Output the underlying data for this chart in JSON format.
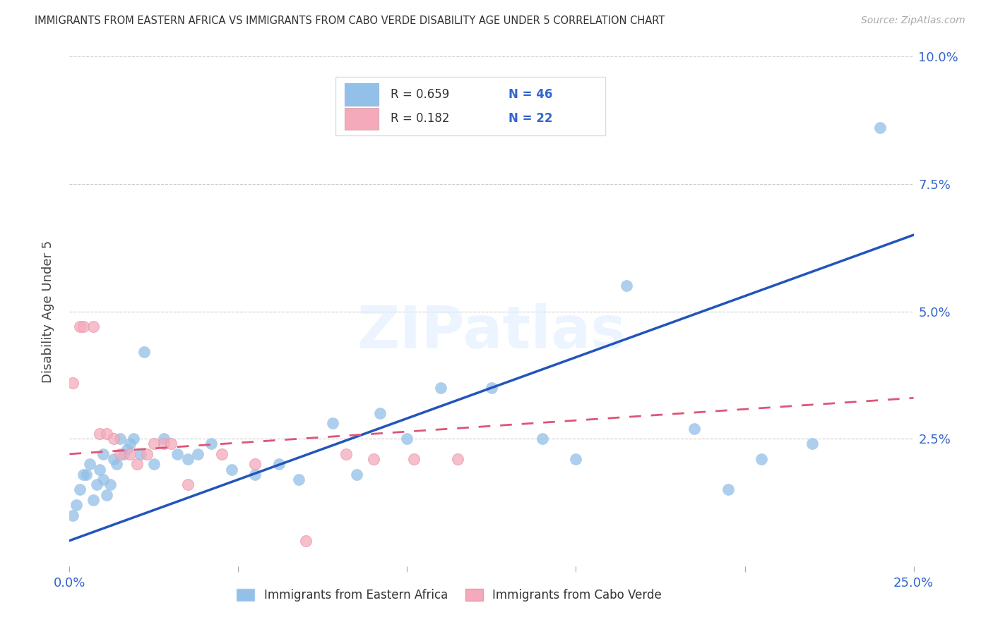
{
  "title": "IMMIGRANTS FROM EASTERN AFRICA VS IMMIGRANTS FROM CABO VERDE DISABILITY AGE UNDER 5 CORRELATION CHART",
  "source": "Source: ZipAtlas.com",
  "ylabel": "Disability Age Under 5",
  "xlim": [
    0.0,
    0.25
  ],
  "ylim": [
    0.0,
    0.1
  ],
  "xticks": [
    0.0,
    0.05,
    0.1,
    0.15,
    0.2,
    0.25
  ],
  "yticks": [
    0.0,
    0.025,
    0.05,
    0.075,
    0.1
  ],
  "xticklabels": [
    "0.0%",
    "",
    "",
    "",
    "",
    "25.0%"
  ],
  "yticklabels": [
    "",
    "2.5%",
    "5.0%",
    "7.5%",
    "10.0%"
  ],
  "legend_blue_r": "0.659",
  "legend_blue_n": "46",
  "legend_pink_r": "0.182",
  "legend_pink_n": "22",
  "legend_blue_label": "Immigrants from Eastern Africa",
  "legend_pink_label": "Immigrants from Cabo Verde",
  "blue_color": "#92C0E8",
  "pink_color": "#F5AABB",
  "line_blue_color": "#2255BB",
  "line_pink_color": "#DD5577",
  "watermark": "ZIPatlas",
  "blue_scatter_x": [
    0.001,
    0.002,
    0.003,
    0.004,
    0.005,
    0.006,
    0.007,
    0.008,
    0.009,
    0.01,
    0.01,
    0.011,
    0.012,
    0.013,
    0.014,
    0.015,
    0.016,
    0.017,
    0.018,
    0.019,
    0.021,
    0.022,
    0.025,
    0.028,
    0.032,
    0.035,
    0.038,
    0.042,
    0.048,
    0.055,
    0.062,
    0.068,
    0.078,
    0.085,
    0.092,
    0.1,
    0.11,
    0.125,
    0.14,
    0.15,
    0.165,
    0.185,
    0.195,
    0.205,
    0.22,
    0.24
  ],
  "blue_scatter_y": [
    0.01,
    0.012,
    0.015,
    0.018,
    0.018,
    0.02,
    0.013,
    0.016,
    0.019,
    0.022,
    0.017,
    0.014,
    0.016,
    0.021,
    0.02,
    0.025,
    0.022,
    0.023,
    0.024,
    0.025,
    0.022,
    0.042,
    0.02,
    0.025,
    0.022,
    0.021,
    0.022,
    0.024,
    0.019,
    0.018,
    0.02,
    0.017,
    0.028,
    0.018,
    0.03,
    0.025,
    0.035,
    0.035,
    0.025,
    0.021,
    0.055,
    0.027,
    0.015,
    0.021,
    0.024,
    0.086
  ],
  "pink_scatter_x": [
    0.001,
    0.003,
    0.004,
    0.007,
    0.009,
    0.011,
    0.013,
    0.015,
    0.018,
    0.02,
    0.023,
    0.025,
    0.028,
    0.03,
    0.035,
    0.045,
    0.055,
    0.07,
    0.082,
    0.09,
    0.102,
    0.115
  ],
  "pink_scatter_y": [
    0.036,
    0.047,
    0.047,
    0.047,
    0.026,
    0.026,
    0.025,
    0.022,
    0.022,
    0.02,
    0.022,
    0.024,
    0.024,
    0.024,
    0.016,
    0.022,
    0.02,
    0.005,
    0.022,
    0.021,
    0.021,
    0.021
  ],
  "blue_line_x0": 0.0,
  "blue_line_x1": 0.25,
  "blue_line_y0": 0.005,
  "blue_line_y1": 0.065,
  "pink_line_x0": 0.0,
  "pink_line_x1": 0.25,
  "pink_line_y0": 0.022,
  "pink_line_y1": 0.033
}
